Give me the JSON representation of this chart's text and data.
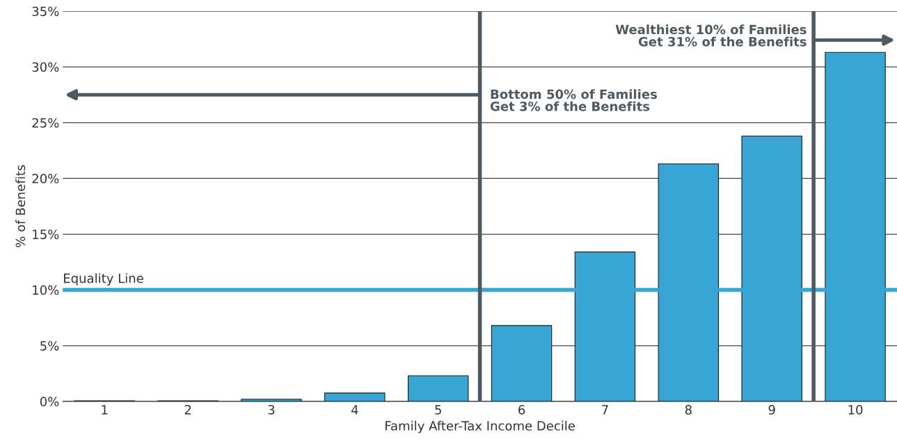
{
  "chart_data": {
    "type": "bar",
    "xlabel": "Family After-Tax Income Decile",
    "ylabel": "% of Benefits",
    "categories": [
      "1",
      "2",
      "3",
      "4",
      "5",
      "6",
      "7",
      "8",
      "9",
      "10"
    ],
    "values": [
      0.05,
      0.05,
      0.2,
      0.75,
      2.3,
      6.8,
      13.4,
      21.3,
      23.8,
      31.3
    ],
    "color": "#37a6d4",
    "ylim": [
      0,
      35
    ],
    "yticks": [
      {
        "value": 0,
        "label": "0%"
      },
      {
        "value": 5,
        "label": "5%"
      },
      {
        "value": 10,
        "label": "10%"
      },
      {
        "value": 15,
        "label": "15%"
      },
      {
        "value": 20,
        "label": "20%"
      },
      {
        "value": 25,
        "label": "25%"
      },
      {
        "value": 30,
        "label": "30%"
      },
      {
        "value": 35,
        "label": "35%"
      }
    ],
    "grid": "y",
    "ref_lines": [
      {
        "axis": "y",
        "value": 10,
        "label": "Equality Line",
        "color": "#37a6d4"
      }
    ],
    "annotations": [
      "Bottom 50% of Families\nGet 3% of the Benefits",
      "Wealthiest 10% of Families\nGet 31% of the Benefits"
    ]
  }
}
